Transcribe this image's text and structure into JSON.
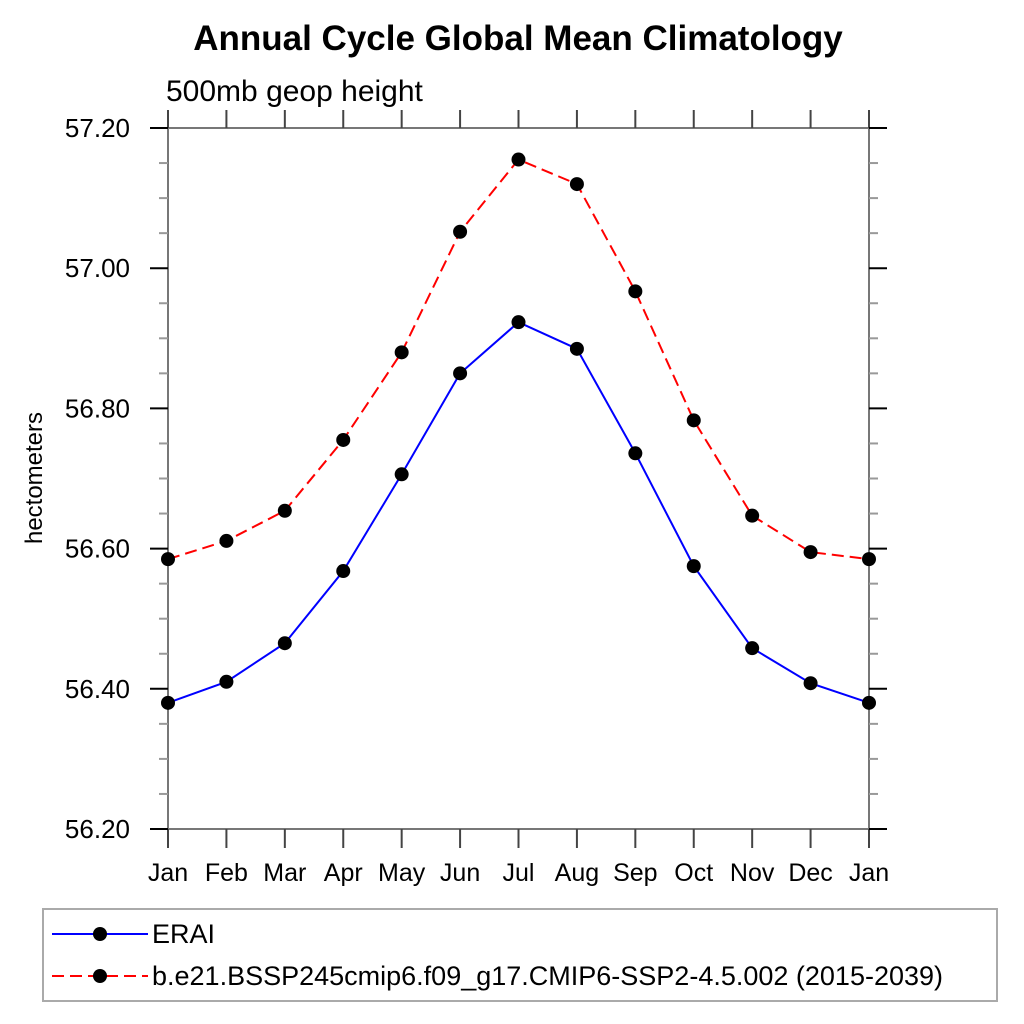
{
  "chart_data": {
    "type": "line",
    "title": "Annual Cycle Global Mean Climatology",
    "subtitle": "500mb geop height",
    "ylabel": "hectometers",
    "x_categories": [
      "Jan",
      "Feb",
      "Mar",
      "Apr",
      "May",
      "Jun",
      "Jul",
      "Aug",
      "Sep",
      "Oct",
      "Nov",
      "Dec",
      "Jan"
    ],
    "ylim": [
      56.2,
      57.2
    ],
    "y_ticks": [
      56.2,
      56.4,
      56.6,
      56.8,
      57.0,
      57.2
    ],
    "y_tick_labels": [
      "56.20",
      "56.40",
      "56.60",
      "56.80",
      "57.00",
      "57.20"
    ],
    "y_minor_step": 0.05,
    "grid": false,
    "legend_position": "bottom-left-box",
    "marker_color": "#000000",
    "axis_color": "#777777",
    "series": [
      {
        "name": "ERAI",
        "color": "#0000ff",
        "style": "solid",
        "marker": "filled-circle",
        "values": [
          56.38,
          56.41,
          56.465,
          56.568,
          56.706,
          56.85,
          56.923,
          56.885,
          56.736,
          56.575,
          56.458,
          56.408,
          56.38
        ]
      },
      {
        "name": "b.e21.BSSP245cmip6.f09_g17.CMIP6-SSP2-4.5.002 (2015-2039)",
        "color": "#ff0000",
        "style": "dashed",
        "marker": "filled-circle",
        "values": [
          56.585,
          56.611,
          56.654,
          56.755,
          56.88,
          57.052,
          57.155,
          57.12,
          56.967,
          56.783,
          56.647,
          56.595,
          56.585
        ]
      }
    ]
  }
}
